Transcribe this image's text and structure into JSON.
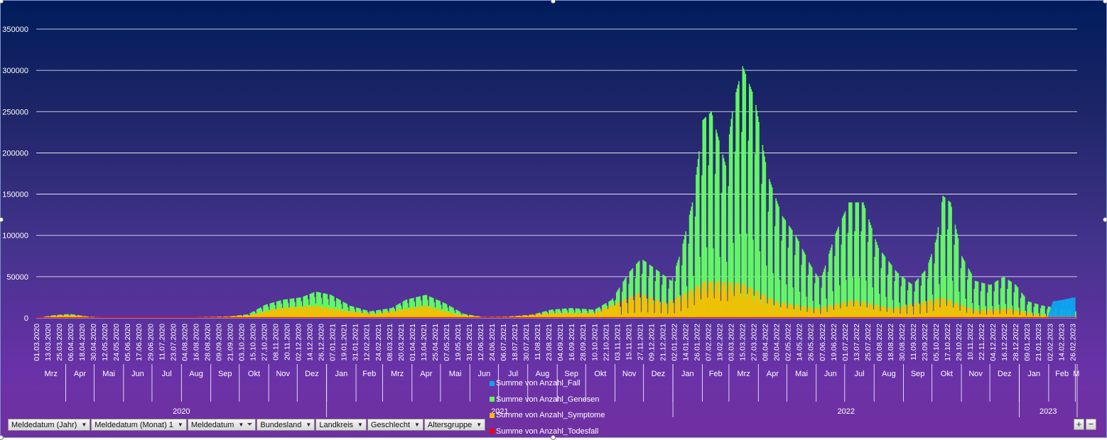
{
  "chart_data": {
    "type": "area",
    "title": "",
    "y_ticks": [
      "0",
      "50000",
      "100000",
      "150000",
      "200000",
      "250000",
      "300000",
      "350000"
    ],
    "ylim": [
      0,
      350000
    ],
    "grid": true,
    "legend_placement": "bottom-center",
    "series": [
      {
        "name": "Summe von Anzahl_Fall",
        "color": "#0fa3ee"
      },
      {
        "name": "Summe von Anzahl_Genesen",
        "color": "#62fb63"
      },
      {
        "name": "Summe von Anzahl_Symptome",
        "color": "#f7be00"
      },
      {
        "name": "Summe von Anzahl_Todesfall",
        "color": "#ff0000"
      }
    ],
    "genesen_profile": [
      [
        "2020-03-01",
        0
      ],
      [
        "2020-03-20",
        3500
      ],
      [
        "2020-04-05",
        4800
      ],
      [
        "2020-04-25",
        1500
      ],
      [
        "2020-05-15",
        400
      ],
      [
        "2020-07-01",
        300
      ],
      [
        "2020-08-15",
        800
      ],
      [
        "2020-09-20",
        1800
      ],
      [
        "2020-10-10",
        4500
      ],
      [
        "2020-10-28",
        16000
      ],
      [
        "2020-11-15",
        22000
      ],
      [
        "2020-12-05",
        25000
      ],
      [
        "2020-12-20",
        32000
      ],
      [
        "2021-01-05",
        28000
      ],
      [
        "2021-01-25",
        15000
      ],
      [
        "2021-02-15",
        8000
      ],
      [
        "2021-03-10",
        12000
      ],
      [
        "2021-03-25",
        22000
      ],
      [
        "2021-04-15",
        28000
      ],
      [
        "2021-05-05",
        18000
      ],
      [
        "2021-05-25",
        5000
      ],
      [
        "2021-06-15",
        1000
      ],
      [
        "2021-07-10",
        1500
      ],
      [
        "2021-08-05",
        4000
      ],
      [
        "2021-08-25",
        10000
      ],
      [
        "2021-09-15",
        12000
      ],
      [
        "2021-10-10",
        10000
      ],
      [
        "2021-10-28",
        22000
      ],
      [
        "2021-11-15",
        55000
      ],
      [
        "2021-11-28",
        72000
      ],
      [
        "2021-12-10",
        62000
      ],
      [
        "2021-12-30",
        45000
      ],
      [
        "2022-01-10",
        85000
      ],
      [
        "2022-01-22",
        145000
      ],
      [
        "2022-02-01",
        240000
      ],
      [
        "2022-02-10",
        250000
      ],
      [
        "2022-02-25",
        185000
      ],
      [
        "2022-03-05",
        260000
      ],
      [
        "2022-03-15",
        305000
      ],
      [
        "2022-03-28",
        265000
      ],
      [
        "2022-04-10",
        175000
      ],
      [
        "2022-04-25",
        125000
      ],
      [
        "2022-05-10",
        100000
      ],
      [
        "2022-05-25",
        65000
      ],
      [
        "2022-06-05",
        45000
      ],
      [
        "2022-06-20",
        100000
      ],
      [
        "2022-07-05",
        140000
      ],
      [
        "2022-07-20",
        140000
      ],
      [
        "2022-08-05",
        85000
      ],
      [
        "2022-08-25",
        55000
      ],
      [
        "2022-09-10",
        40000
      ],
      [
        "2022-09-25",
        60000
      ],
      [
        "2022-10-05",
        95000
      ],
      [
        "2022-10-12",
        148000
      ],
      [
        "2022-10-20",
        140000
      ],
      [
        "2022-11-01",
        75000
      ],
      [
        "2022-11-15",
        45000
      ],
      [
        "2022-12-01",
        40000
      ],
      [
        "2022-12-15",
        50000
      ],
      [
        "2022-12-28",
        40000
      ],
      [
        "2023-01-10",
        20000
      ],
      [
        "2023-01-25",
        15000
      ],
      [
        "2023-02-10",
        12000
      ],
      [
        "2023-03-01",
        8000
      ]
    ],
    "symptome_profile": [
      [
        "2020-03-01",
        0
      ],
      [
        "2020-03-25",
        3500
      ],
      [
        "2020-04-15",
        3000
      ],
      [
        "2020-05-05",
        500
      ],
      [
        "2020-10-10",
        3000
      ],
      [
        "2020-11-10",
        12000
      ],
      [
        "2020-12-20",
        15000
      ],
      [
        "2021-01-20",
        9000
      ],
      [
        "2021-02-20",
        5000
      ],
      [
        "2021-04-15",
        15000
      ],
      [
        "2021-05-20",
        4000
      ],
      [
        "2021-06-20",
        800
      ],
      [
        "2021-08-25",
        6000
      ],
      [
        "2021-10-10",
        6000
      ],
      [
        "2021-11-25",
        30000
      ],
      [
        "2021-12-25",
        18000
      ],
      [
        "2022-02-05",
        45000
      ],
      [
        "2022-03-15",
        42000
      ],
      [
        "2022-04-20",
        20000
      ],
      [
        "2022-06-01",
        12000
      ],
      [
        "2022-07-10",
        22000
      ],
      [
        "2022-08-20",
        12000
      ],
      [
        "2022-10-12",
        25000
      ],
      [
        "2022-11-15",
        10000
      ],
      [
        "2022-12-20",
        12000
      ],
      [
        "2023-01-20",
        4000
      ],
      [
        "2023-03-01",
        2000
      ]
    ],
    "fall_profile": [
      [
        "2023-01-30",
        0
      ],
      [
        "2023-02-05",
        20000
      ],
      [
        "2023-02-15",
        22000
      ],
      [
        "2023-02-28",
        25000
      ]
    ],
    "date_ticks": [
      "01.03.2020",
      "13.03.2020",
      "25.03.2020",
      "06.04.2020",
      "18.04.2020",
      "30.04.2020",
      "12.05.2020",
      "24.05.2020",
      "05.06.2020",
      "17.06.2020",
      "29.06.2020",
      "11.07.2020",
      "23.07.2020",
      "04.08.2020",
      "16.08.2020",
      "28.08.2020",
      "09.09.2020",
      "21.09.2020",
      "03.10.2020",
      "15.10.2020",
      "27.10.2020",
      "08.11.2020",
      "20.11.2020",
      "02.12.2020",
      "14.12.2020",
      "26.12.2020",
      "07.01.2021",
      "19.01.2021",
      "31.01.2021",
      "12.02.2021",
      "24.02.2021",
      "08.03.2021",
      "20.03.2021",
      "01.04.2021",
      "13.04.2021",
      "25.04.2021",
      "07.05.2021",
      "19.05.2021",
      "31.05.2021",
      "12.06.2021",
      "24.06.2021",
      "06.07.2021",
      "18.07.2021",
      "30.07.2021",
      "11.08.2021",
      "23.08.2021",
      "04.09.2021",
      "16.09.2021",
      "28.09.2021",
      "10.10.2021",
      "22.10.2021",
      "03.11.2021",
      "15.11.2021",
      "27.11.2021",
      "09.12.2021",
      "21.12.2021",
      "02.01.2022",
      "14.01.2022",
      "26.01.2022",
      "07.02.2022",
      "19.02.2022",
      "03.03.2022",
      "15.03.2022",
      "27.03.2022",
      "08.04.2022",
      "20.04.2022",
      "02.05.2022",
      "14.05.2022",
      "26.05.2022",
      "07.06.2022",
      "19.06.2022",
      "01.07.2022",
      "13.07.2022",
      "25.07.2022",
      "06.08.2022",
      "18.08.2022",
      "30.08.2022",
      "11.09.2022",
      "23.09.2022",
      "05.10.2022",
      "17.10.2022",
      "29.10.2022",
      "10.11.2022",
      "22.11.2022",
      "04.12.2022",
      "16.12.2022",
      "28.12.2022",
      "09.01.2023",
      "21.01.2023",
      "02.02.2023",
      "14.02.2023",
      "26.02.2023"
    ],
    "month_ticks": [
      [
        "2020-03",
        "Mrz"
      ],
      [
        "2020-04",
        "Apr"
      ],
      [
        "2020-05",
        "Mai"
      ],
      [
        "2020-06",
        "Jun"
      ],
      [
        "2020-07",
        "Jul"
      ],
      [
        "2020-08",
        "Aug"
      ],
      [
        "2020-09",
        "Sep"
      ],
      [
        "2020-10",
        "Okt"
      ],
      [
        "2020-11",
        "Nov"
      ],
      [
        "2020-12",
        "Dez"
      ],
      [
        "2021-01",
        "Jan"
      ],
      [
        "2021-02",
        "Feb"
      ],
      [
        "2021-03",
        "Mrz"
      ],
      [
        "2021-04",
        "Apr"
      ],
      [
        "2021-05",
        "Mai"
      ],
      [
        "2021-06",
        "Jun"
      ],
      [
        "2021-07",
        "Jul"
      ],
      [
        "2021-08",
        "Aug"
      ],
      [
        "2021-09",
        "Sep"
      ],
      [
        "2021-10",
        "Okt"
      ],
      [
        "2021-11",
        "Nov"
      ],
      [
        "2021-12",
        "Dez"
      ],
      [
        "2022-01",
        "Jan"
      ],
      [
        "2022-02",
        "Feb"
      ],
      [
        "2022-03",
        "Mrz"
      ],
      [
        "2022-04",
        "Apr"
      ],
      [
        "2022-05",
        "Mai"
      ],
      [
        "2022-06",
        "Jun"
      ],
      [
        "2022-07",
        "Jul"
      ],
      [
        "2022-08",
        "Aug"
      ],
      [
        "2022-09",
        "Sep"
      ],
      [
        "2022-10",
        "Okt"
      ],
      [
        "2022-11",
        "Nov"
      ],
      [
        "2022-12",
        "Dez"
      ],
      [
        "2023-01",
        "Jan"
      ],
      [
        "2023-02",
        "Feb"
      ],
      [
        "2023-03",
        "M"
      ]
    ],
    "year_ticks": [
      "2020",
      "2021",
      "2022",
      "2023"
    ]
  },
  "filter_buttons": [
    {
      "label": "Meldedatum (Jahr)",
      "filtered": false
    },
    {
      "label": "Meldedatum (Monat) 1",
      "filtered": false
    },
    {
      "label": "Meldedatum",
      "filtered": true
    },
    {
      "label": "Bundesland",
      "filtered": false
    },
    {
      "label": "Landkreis",
      "filtered": false
    },
    {
      "label": "Geschlecht",
      "filtered": false
    },
    {
      "label": "Altersgruppe",
      "filtered": false
    }
  ],
  "zoom": {
    "plus": "+",
    "minus": "−"
  },
  "colors": {
    "background_top": "#001c5c",
    "background_bottom": "#7030a0",
    "gridline": "#ffffff"
  }
}
